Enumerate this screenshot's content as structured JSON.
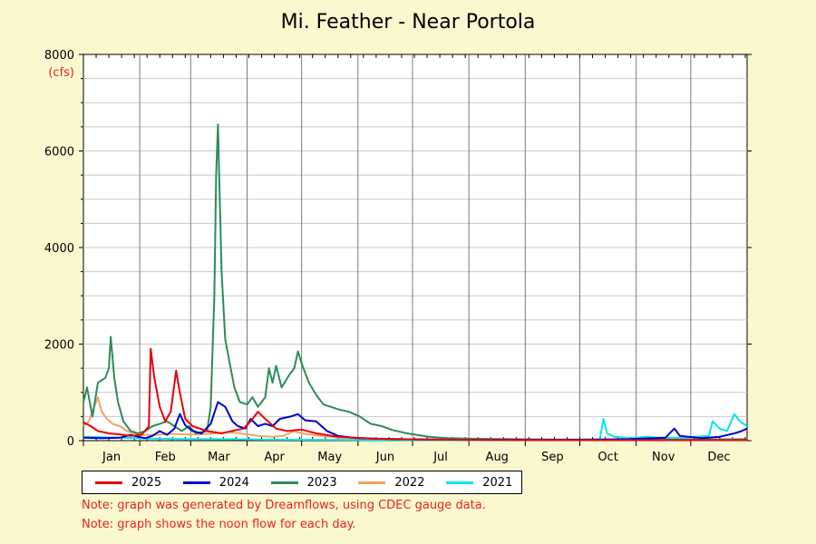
{
  "chart_data": {
    "type": "line",
    "title": "Mi. Feather - Near Portola",
    "ylabel": "(cfs)",
    "xlabel": "",
    "ylim": [
      0,
      8000
    ],
    "yticks": [
      "0",
      "2000",
      "4000",
      "6000",
      "8000"
    ],
    "xlim": [
      0,
      365
    ],
    "months": [
      "Jan",
      "Feb",
      "Mar",
      "Apr",
      "May",
      "Jun",
      "Jul",
      "Aug",
      "Sep",
      "Oct",
      "Nov",
      "Dec"
    ],
    "grid": true,
    "legend_position": "bottom",
    "series": [
      {
        "name": "2025",
        "color": "#e8000b",
        "points": [
          [
            0,
            380
          ],
          [
            4,
            300
          ],
          [
            8,
            200
          ],
          [
            14,
            150
          ],
          [
            20,
            130
          ],
          [
            26,
            100
          ],
          [
            32,
            120
          ],
          [
            36,
            300
          ],
          [
            37,
            1900
          ],
          [
            39,
            1300
          ],
          [
            42,
            700
          ],
          [
            45,
            400
          ],
          [
            48,
            600
          ],
          [
            51,
            1450
          ],
          [
            53,
            1000
          ],
          [
            56,
            450
          ],
          [
            60,
            300
          ],
          [
            68,
            200
          ],
          [
            76,
            150
          ],
          [
            84,
            220
          ],
          [
            88,
            250
          ],
          [
            92,
            400
          ],
          [
            96,
            600
          ],
          [
            100,
            450
          ],
          [
            106,
            250
          ],
          [
            112,
            200
          ],
          [
            120,
            230
          ],
          [
            128,
            150
          ],
          [
            140,
            80
          ],
          [
            160,
            40
          ],
          [
            190,
            20
          ],
          [
            230,
            12
          ],
          [
            300,
            10
          ],
          [
            365,
            10
          ]
        ]
      },
      {
        "name": "2024",
        "color": "#0000cc",
        "points": [
          [
            0,
            60
          ],
          [
            10,
            50
          ],
          [
            20,
            60
          ],
          [
            26,
            120
          ],
          [
            30,
            80
          ],
          [
            34,
            50
          ],
          [
            38,
            100
          ],
          [
            42,
            200
          ],
          [
            46,
            120
          ],
          [
            50,
            250
          ],
          [
            53,
            550
          ],
          [
            56,
            320
          ],
          [
            60,
            200
          ],
          [
            65,
            150
          ],
          [
            70,
            350
          ],
          [
            74,
            800
          ],
          [
            78,
            700
          ],
          [
            82,
            400
          ],
          [
            85,
            300
          ],
          [
            89,
            250
          ],
          [
            92,
            450
          ],
          [
            96,
            300
          ],
          [
            100,
            350
          ],
          [
            104,
            300
          ],
          [
            108,
            450
          ],
          [
            114,
            500
          ],
          [
            118,
            550
          ],
          [
            122,
            420
          ],
          [
            128,
            400
          ],
          [
            134,
            200
          ],
          [
            140,
            100
          ],
          [
            150,
            50
          ],
          [
            170,
            30
          ],
          [
            200,
            20
          ],
          [
            250,
            15
          ],
          [
            280,
            20
          ],
          [
            300,
            30
          ],
          [
            320,
            60
          ],
          [
            325,
            250
          ],
          [
            328,
            100
          ],
          [
            340,
            50
          ],
          [
            350,
            80
          ],
          [
            358,
            150
          ],
          [
            362,
            200
          ],
          [
            365,
            250
          ]
        ]
      },
      {
        "name": "2023",
        "color": "#2e8b57",
        "points": [
          [
            0,
            800
          ],
          [
            2,
            1100
          ],
          [
            5,
            500
          ],
          [
            8,
            1200
          ],
          [
            12,
            1300
          ],
          [
            14,
            1500
          ],
          [
            15,
            2150
          ],
          [
            17,
            1300
          ],
          [
            19,
            800
          ],
          [
            22,
            400
          ],
          [
            26,
            200
          ],
          [
            30,
            150
          ],
          [
            34,
            200
          ],
          [
            38,
            300
          ],
          [
            42,
            350
          ],
          [
            46,
            400
          ],
          [
            50,
            300
          ],
          [
            54,
            200
          ],
          [
            58,
            300
          ],
          [
            62,
            150
          ],
          [
            68,
            200
          ],
          [
            70,
            700
          ],
          [
            72,
            3000
          ],
          [
            73,
            5500
          ],
          [
            74,
            6550
          ],
          [
            75,
            5000
          ],
          [
            76,
            3500
          ],
          [
            78,
            2100
          ],
          [
            80,
            1700
          ],
          [
            83,
            1100
          ],
          [
            86,
            800
          ],
          [
            90,
            750
          ],
          [
            93,
            900
          ],
          [
            96,
            700
          ],
          [
            100,
            900
          ],
          [
            102,
            1500
          ],
          [
            104,
            1200
          ],
          [
            106,
            1550
          ],
          [
            109,
            1100
          ],
          [
            113,
            1350
          ],
          [
            116,
            1500
          ],
          [
            118,
            1850
          ],
          [
            120,
            1600
          ],
          [
            124,
            1200
          ],
          [
            128,
            950
          ],
          [
            132,
            750
          ],
          [
            136,
            700
          ],
          [
            140,
            650
          ],
          [
            146,
            600
          ],
          [
            152,
            500
          ],
          [
            158,
            350
          ],
          [
            164,
            300
          ],
          [
            170,
            220
          ],
          [
            178,
            150
          ],
          [
            190,
            80
          ],
          [
            200,
            50
          ],
          [
            220,
            35
          ],
          [
            260,
            25
          ],
          [
            300,
            20
          ],
          [
            340,
            25
          ],
          [
            365,
            30
          ]
        ]
      },
      {
        "name": "2022",
        "color": "#f4a460",
        "points": [
          [
            0,
            300
          ],
          [
            3,
            400
          ],
          [
            6,
            700
          ],
          [
            8,
            900
          ],
          [
            10,
            600
          ],
          [
            13,
            450
          ],
          [
            16,
            350
          ],
          [
            20,
            300
          ],
          [
            24,
            200
          ],
          [
            28,
            150
          ],
          [
            32,
            120
          ],
          [
            40,
            120
          ],
          [
            48,
            140
          ],
          [
            56,
            130
          ],
          [
            64,
            130
          ],
          [
            72,
            150
          ],
          [
            80,
            180
          ],
          [
            88,
            140
          ],
          [
            96,
            100
          ],
          [
            104,
            80
          ],
          [
            110,
            100
          ],
          [
            116,
            200
          ],
          [
            120,
            150
          ],
          [
            130,
            100
          ],
          [
            140,
            60
          ],
          [
            160,
            40
          ],
          [
            200,
            20
          ],
          [
            365,
            15
          ]
        ]
      },
      {
        "name": "2021",
        "color": "#00e5ee",
        "points": [
          [
            0,
            80
          ],
          [
            20,
            60
          ],
          [
            40,
            40
          ],
          [
            60,
            30
          ],
          [
            80,
            30
          ],
          [
            100,
            20
          ],
          [
            150,
            15
          ],
          [
            200,
            10
          ],
          [
            270,
            10
          ],
          [
            284,
            30
          ],
          [
            286,
            450
          ],
          [
            288,
            150
          ],
          [
            292,
            80
          ],
          [
            300,
            50
          ],
          [
            310,
            80
          ],
          [
            316,
            60
          ],
          [
            330,
            60
          ],
          [
            344,
            100
          ],
          [
            346,
            400
          ],
          [
            350,
            250
          ],
          [
            354,
            200
          ],
          [
            358,
            550
          ],
          [
            361,
            400
          ],
          [
            365,
            300
          ]
        ]
      }
    ]
  },
  "notes": [
    "Note: graph was generated by Dreamflows, using CDEC gauge data.",
    "Note: graph shows the noon flow for each day."
  ]
}
